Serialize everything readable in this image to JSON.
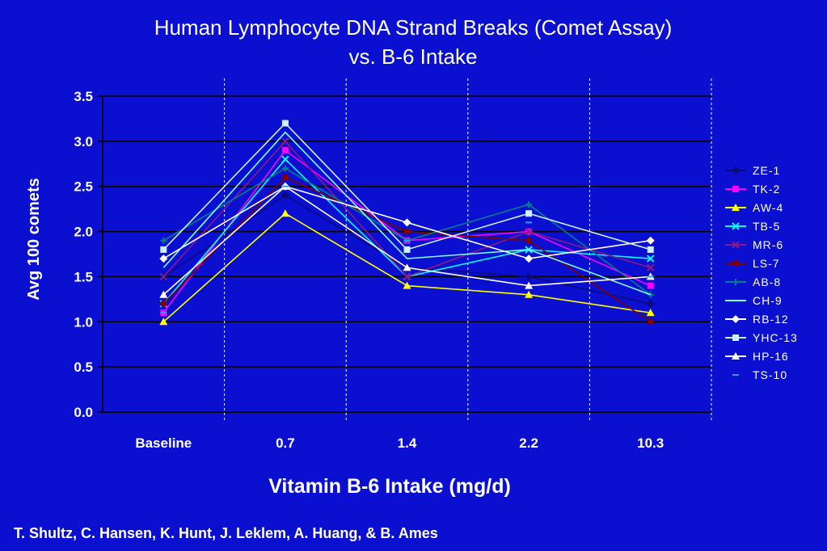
{
  "chart_data": {
    "type": "line",
    "title": "Human Lymphocyte DNA Strand Breaks (Comet Assay)",
    "subtitle": "vs. B-6 Intake",
    "xlabel": "Vitamin B-6 Intake (mg/d)",
    "ylabel": "Avg 100 comets",
    "categories": [
      "Baseline",
      "0.7",
      "1.4",
      "2.2",
      "10.3"
    ],
    "ylim": [
      0,
      3.5
    ],
    "yticks": [
      "0.0",
      "0.5",
      "1.0",
      "1.5",
      "2.0",
      "2.5",
      "3.0",
      "3.5"
    ],
    "grid": "horizontal",
    "legend_position": "right",
    "series": [
      {
        "name": "ZE-1",
        "values": [
          1.5,
          2.4,
          1.6,
          1.5,
          1.2
        ],
        "color": "#0a0a7a",
        "marker": "diamond"
      },
      {
        "name": "TK-2",
        "values": [
          1.1,
          2.9,
          1.9,
          2.0,
          1.4
        ],
        "color": "#ff00ff",
        "marker": "square"
      },
      {
        "name": "AW-4",
        "values": [
          1.0,
          2.2,
          1.4,
          1.3,
          1.1
        ],
        "color": "#ffff00",
        "marker": "triangle"
      },
      {
        "name": "TB-5",
        "values": [
          1.2,
          2.8,
          1.5,
          1.8,
          1.7
        ],
        "color": "#00ffff",
        "marker": "x"
      },
      {
        "name": "MR-6",
        "values": [
          1.5,
          3.0,
          1.5,
          2.0,
          1.6
        ],
        "color": "#8a1a8a",
        "marker": "x"
      },
      {
        "name": "LS-7",
        "values": [
          1.2,
          2.6,
          2.0,
          1.9,
          1.0
        ],
        "color": "#800000",
        "marker": "circle"
      },
      {
        "name": "AB-8",
        "values": [
          1.9,
          2.7,
          1.9,
          2.3,
          1.3
        ],
        "color": "#00808a",
        "marker": "plus"
      },
      {
        "name": "CH-9",
        "values": [
          1.6,
          3.1,
          1.7,
          1.8,
          1.3
        ],
        "color": "#80ffff",
        "marker": "none"
      },
      {
        "name": "RB-12",
        "values": [
          1.7,
          2.5,
          2.1,
          1.7,
          1.9
        ],
        "color": "#ffffff",
        "marker": "diamond"
      },
      {
        "name": "YHC-13",
        "values": [
          1.8,
          3.2,
          1.8,
          2.2,
          1.8
        ],
        "color": "#ccf0ff",
        "marker": "square"
      },
      {
        "name": "HP-16",
        "values": [
          1.3,
          2.5,
          1.6,
          1.4,
          1.5
        ],
        "color": "#ffffff",
        "marker": "triangle"
      },
      {
        "name": "TS-10",
        "values": [
          1.1,
          2.5,
          1.9,
          2.1,
          1.5
        ],
        "color": "#2aa0ff",
        "marker": "dash"
      }
    ]
  },
  "credit": "T. Shultz, C. Hansen, K. Hunt, J. Leklem, A. Huang, & B. Ames"
}
